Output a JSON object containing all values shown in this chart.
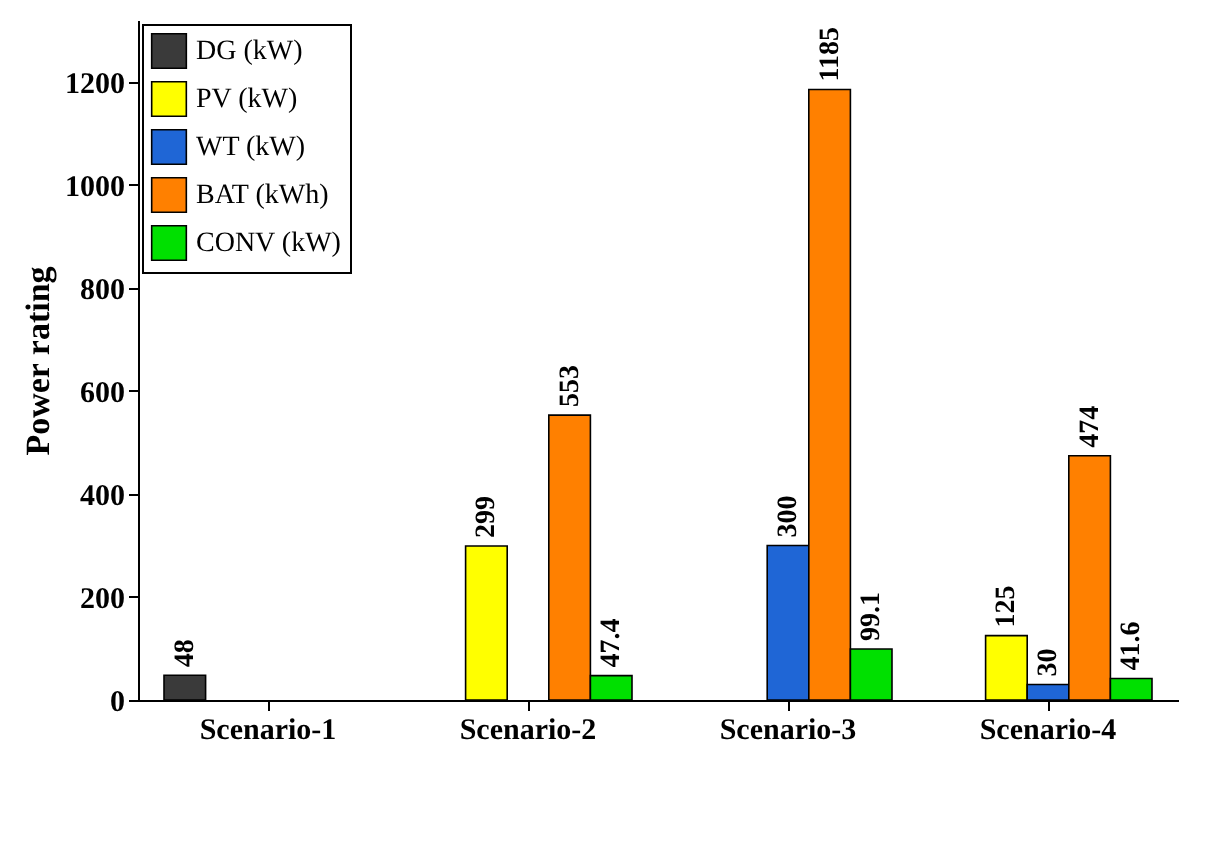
{
  "chart_data": {
    "type": "bar",
    "ylabel": "Power rating",
    "categories": [
      "Scenario-1",
      "Scenario-2",
      "Scenario-3",
      "Scenario-4"
    ],
    "series": [
      {
        "name": "DG (kW)",
        "color": "#3a3a3a",
        "values": [
          48,
          null,
          null,
          null
        ],
        "value_labels": [
          "48",
          null,
          null,
          null
        ]
      },
      {
        "name": "PV (kW)",
        "color": "#ffff00",
        "values": [
          null,
          299,
          null,
          125
        ],
        "value_labels": [
          null,
          "299",
          null,
          "125"
        ]
      },
      {
        "name": "WT (kW)",
        "color": "#1f66d6",
        "values": [
          null,
          null,
          300,
          30
        ],
        "value_labels": [
          null,
          null,
          "300",
          "30"
        ]
      },
      {
        "name": "BAT (kWh)",
        "color": "#ff8000",
        "values": [
          null,
          553,
          1185,
          474
        ],
        "value_labels": [
          null,
          "553",
          "1185",
          "474"
        ]
      },
      {
        "name": "CONV (kW)",
        "color": "#00e000",
        "values": [
          null,
          47.4,
          99.1,
          41.6
        ],
        "value_labels": [
          null,
          "47.4",
          "99.1",
          "41.6"
        ]
      }
    ],
    "ylim": [
      0,
      1320
    ],
    "yticks": [
      0,
      200,
      400,
      600,
      800,
      1000,
      1200
    ],
    "grid": false,
    "legend": "top left"
  }
}
